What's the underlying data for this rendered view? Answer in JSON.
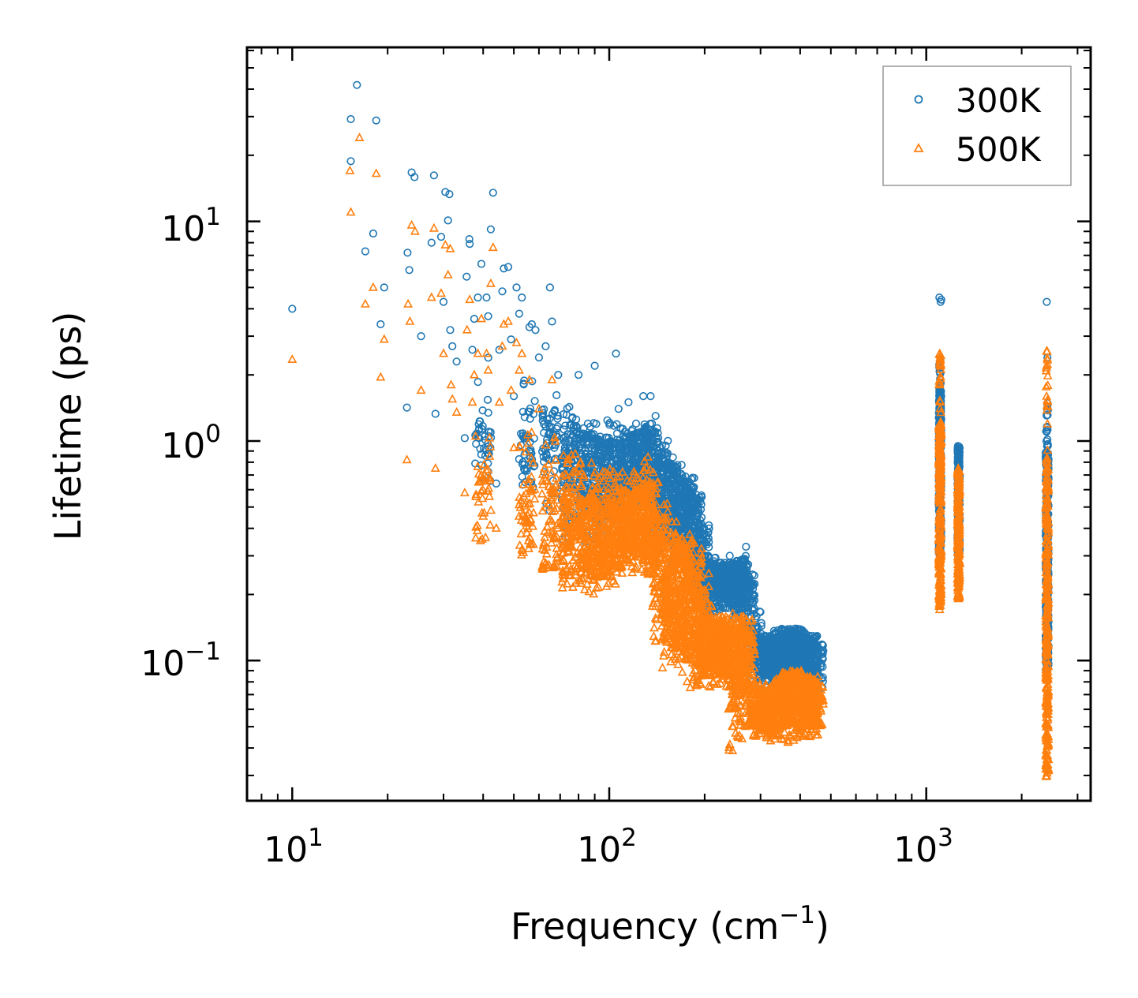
{
  "chart_data": {
    "type": "scatter",
    "xscale": "log",
    "yscale": "log",
    "xlim": [
      7.2,
      3300
    ],
    "ylim": [
      0.023,
      62
    ],
    "xlabel": "Frequency (cm",
    "xlabel_sup": "−1",
    "xlabel_close": ")",
    "ylabel": "Lifetime (ps)",
    "legend_position": "top-right",
    "x_ticks": [
      {
        "base": "10",
        "exp": "1",
        "value": 10
      },
      {
        "base": "10",
        "exp": "2",
        "value": 100
      },
      {
        "base": "10",
        "exp": "3",
        "value": 1000
      }
    ],
    "y_ticks": [
      {
        "base": "10",
        "exp": "−1",
        "value": 0.1
      },
      {
        "base": "10",
        "exp": "0",
        "value": 1
      },
      {
        "base": "10",
        "exp": "1",
        "value": 10
      }
    ],
    "series": [
      {
        "name": "300K",
        "marker": "circle",
        "color": "#1f77b4",
        "points": [
          [
            10,
            4.0
          ],
          [
            15.3,
            18.8
          ],
          [
            15.3,
            29.2
          ],
          [
            16.0,
            41.8
          ],
          [
            17.0,
            7.3
          ],
          [
            18.0,
            8.8
          ],
          [
            18.4,
            28.8
          ],
          [
            19.0,
            3.4
          ],
          [
            19.5,
            5.0
          ],
          [
            23.0,
            1.42
          ],
          [
            23.1,
            7.2
          ],
          [
            23.4,
            6.0
          ],
          [
            23.8,
            16.7
          ],
          [
            24.3,
            15.9
          ],
          [
            25.5,
            3.0
          ],
          [
            27.5,
            8.0
          ],
          [
            28.0,
            16.2
          ],
          [
            28.3,
            1.33
          ],
          [
            29.5,
            8.5
          ],
          [
            30.0,
            4.3
          ],
          [
            30.4,
            13.6
          ],
          [
            31.0,
            10.1
          ],
          [
            31.3,
            13.3
          ],
          [
            31.5,
            3.2
          ],
          [
            32.0,
            2.7
          ],
          [
            33.0,
            2.3
          ],
          [
            35.0,
            1.03
          ],
          [
            35.5,
            5.6
          ],
          [
            36.2,
            8.3
          ],
          [
            36.3,
            7.9
          ],
          [
            37.0,
            2.6
          ],
          [
            37.5,
            3.6
          ],
          [
            38.0,
            0.97
          ],
          [
            38.5,
            4.5
          ],
          [
            39.5,
            6.4
          ],
          [
            41.0,
            4.5
          ],
          [
            41.5,
            3.7
          ],
          [
            42.3,
            9.2
          ],
          [
            43.0,
            13.5
          ],
          [
            44.0,
            0.64
          ],
          [
            45.0,
            2.6
          ],
          [
            46.0,
            4.8
          ],
          [
            46.5,
            6.1
          ],
          [
            48.0,
            6.2
          ],
          [
            49.0,
            2.9
          ],
          [
            50.0,
            1.6
          ],
          [
            51.0,
            5.0
          ],
          [
            52.0,
            3.8
          ],
          [
            53.0,
            4.5
          ],
          [
            56.0,
            3.3
          ],
          [
            57.0,
            3.4
          ],
          [
            58.5,
            3.2
          ],
          [
            60.0,
            2.4
          ],
          [
            63.0,
            2.7
          ],
          [
            65.0,
            5.0
          ],
          [
            66.0,
            3.5
          ],
          [
            69.0,
            2.0
          ],
          [
            80.0,
            2.0
          ],
          [
            90.0,
            2.2
          ],
          [
            105.0,
            2.5
          ],
          [
            107.0,
            1.4
          ],
          [
            115.0,
            1.5
          ],
          [
            128.0,
            1.6
          ],
          [
            135.0,
            1.6
          ],
          [
            140.0,
            1.3
          ],
          [
            240.0,
            0.3
          ],
          [
            270.0,
            0.33
          ],
          [
            1100.0,
            4.5
          ],
          [
            1110.0,
            4.3
          ],
          [
            1115.0,
            4.4
          ],
          [
            2400.0,
            4.3
          ],
          [
            2410.0,
            2.4
          ]
        ],
        "bands": [
          [
            40,
            1.0,
            2.4,
            0.65,
            1.3,
            40
          ],
          [
            55,
            1.1,
            2.2,
            0.6,
            1.1,
            50
          ],
          [
            65,
            0.45,
            1.7,
            0.8,
            1.4,
            60
          ],
          [
            75,
            0.35,
            1.5,
            0.6,
            1.2,
            120
          ],
          [
            85,
            0.33,
            1.35,
            0.5,
            1.1,
            150
          ],
          [
            95,
            0.33,
            1.25,
            0.46,
            1.05,
            150
          ],
          [
            105,
            0.36,
            1.2,
            0.5,
            1.0,
            150
          ],
          [
            115,
            0.38,
            1.15,
            0.55,
            1.05,
            150
          ],
          [
            125,
            0.38,
            1.2,
            0.58,
            1.1,
            150
          ],
          [
            135,
            0.35,
            1.25,
            0.5,
            1.15,
            150
          ],
          [
            145,
            0.3,
            1.05,
            0.4,
            0.9,
            130
          ],
          [
            155,
            0.3,
            0.88,
            0.4,
            0.8,
            120
          ],
          [
            165,
            0.26,
            0.78,
            0.34,
            0.72,
            120
          ],
          [
            175,
            0.25,
            0.7,
            0.32,
            0.68,
            120
          ],
          [
            185,
            0.22,
            0.6,
            0.28,
            0.58,
            120
          ],
          [
            195,
            0.18,
            0.45,
            0.22,
            0.42,
            120
          ],
          [
            205,
            0.16,
            0.3,
            0.2,
            0.28,
            120
          ],
          [
            220,
            0.16,
            0.28,
            0.19,
            0.27,
            130
          ],
          [
            235,
            0.17,
            0.28,
            0.2,
            0.28,
            130
          ],
          [
            250,
            0.15,
            0.28,
            0.18,
            0.28,
            130
          ],
          [
            262,
            0.16,
            0.3,
            0.2,
            0.29,
            100
          ],
          [
            272,
            0.14,
            0.25,
            0.17,
            0.24,
            80
          ],
          [
            285,
            0.085,
            0.17,
            0.1,
            0.15,
            80
          ],
          [
            297,
            0.09,
            0.135,
            0.1,
            0.13,
            60
          ],
          [
            312,
            0.075,
            0.12,
            0.085,
            0.118,
            100
          ],
          [
            330,
            0.075,
            0.13,
            0.085,
            0.13,
            120
          ],
          [
            350,
            0.075,
            0.14,
            0.085,
            0.135,
            120
          ],
          [
            370,
            0.08,
            0.14,
            0.09,
            0.14,
            120
          ],
          [
            390,
            0.08,
            0.14,
            0.09,
            0.14,
            120
          ],
          [
            410,
            0.08,
            0.135,
            0.09,
            0.135,
            120
          ],
          [
            430,
            0.075,
            0.13,
            0.085,
            0.13,
            120
          ],
          [
            447,
            0.075,
            0.12,
            0.08,
            0.12,
            80
          ]
        ],
        "clusters": [
          [
            1095,
            1115,
            0.3,
            1.8,
            260
          ],
          [
            1098,
            1112,
            1.0,
            2.6,
            30
          ],
          [
            1255,
            1275,
            0.3,
            0.95,
            220
          ],
          [
            2380,
            2430,
            0.09,
            0.9,
            300
          ],
          [
            2390,
            2420,
            0.9,
            1.5,
            20
          ]
        ]
      },
      {
        "name": "500K",
        "marker": "triangle",
        "color": "#ff7f0e",
        "points": [
          [
            10,
            2.35
          ],
          [
            15.2,
            17.0
          ],
          [
            15.3,
            11.0
          ],
          [
            16.3,
            24.0
          ],
          [
            17.0,
            4.2
          ],
          [
            18.0,
            5.0
          ],
          [
            18.4,
            16.5
          ],
          [
            19.0,
            1.95
          ],
          [
            19.5,
            2.9
          ],
          [
            23.0,
            0.82
          ],
          [
            23.2,
            4.2
          ],
          [
            23.5,
            3.5
          ],
          [
            23.8,
            9.6
          ],
          [
            24.4,
            9.0
          ],
          [
            25.5,
            1.7
          ],
          [
            27.5,
            4.5
          ],
          [
            28.0,
            9.3
          ],
          [
            28.3,
            0.75
          ],
          [
            29.5,
            4.7
          ],
          [
            30.0,
            2.5
          ],
          [
            30.4,
            7.8
          ],
          [
            31.0,
            5.7
          ],
          [
            31.5,
            7.5
          ],
          [
            31.7,
            1.8
          ],
          [
            32.0,
            1.55
          ],
          [
            33.0,
            1.35
          ],
          [
            35.0,
            0.58
          ],
          [
            35.6,
            3.2
          ],
          [
            36.3,
            4.4
          ],
          [
            37.0,
            1.5
          ],
          [
            37.5,
            2.0
          ],
          [
            38.0,
            0.57
          ],
          [
            38.5,
            2.5
          ],
          [
            39.5,
            3.6
          ],
          [
            41.0,
            2.5
          ],
          [
            41.5,
            2.1
          ],
          [
            42.3,
            5.2
          ],
          [
            43.0,
            7.6
          ],
          [
            44.0,
            0.4
          ],
          [
            45.0,
            1.5
          ],
          [
            46.0,
            2.7
          ],
          [
            46.5,
            3.4
          ],
          [
            48.0,
            3.5
          ],
          [
            49.0,
            1.7
          ],
          [
            50.0,
            0.93
          ],
          [
            51.0,
            2.8
          ],
          [
            52.0,
            2.1
          ],
          [
            53.0,
            2.5
          ],
          [
            56.0,
            1.9
          ],
          [
            60.0,
            1.4
          ],
          [
            66.0,
            1.9
          ]
        ],
        "bands": [
          [
            40,
            0.4,
            1.3,
            0.35,
            0.75,
            40
          ],
          [
            55,
            0.3,
            1.2,
            0.3,
            0.65,
            60
          ],
          [
            65,
            0.24,
            1.05,
            0.26,
            0.7,
            80
          ],
          [
            75,
            0.21,
            0.9,
            0.24,
            0.62,
            140
          ],
          [
            85,
            0.2,
            0.8,
            0.23,
            0.56,
            160
          ],
          [
            95,
            0.21,
            0.8,
            0.24,
            0.55,
            160
          ],
          [
            105,
            0.22,
            0.75,
            0.26,
            0.55,
            160
          ],
          [
            115,
            0.23,
            0.72,
            0.28,
            0.6,
            160
          ],
          [
            125,
            0.25,
            0.75,
            0.3,
            0.62,
            150
          ],
          [
            135,
            0.24,
            0.85,
            0.28,
            0.65,
            150
          ],
          [
            145,
            0.12,
            0.55,
            0.16,
            0.48,
            140
          ],
          [
            155,
            0.09,
            0.45,
            0.12,
            0.4,
            140
          ],
          [
            165,
            0.085,
            0.4,
            0.11,
            0.36,
            130
          ],
          [
            175,
            0.08,
            0.38,
            0.1,
            0.34,
            130
          ],
          [
            185,
            0.075,
            0.33,
            0.095,
            0.3,
            130
          ],
          [
            195,
            0.075,
            0.25,
            0.09,
            0.22,
            120
          ],
          [
            205,
            0.075,
            0.18,
            0.085,
            0.16,
            120
          ],
          [
            220,
            0.075,
            0.16,
            0.085,
            0.15,
            130
          ],
          [
            235,
            0.075,
            0.17,
            0.085,
            0.16,
            130
          ],
          [
            250,
            0.038,
            0.16,
            0.06,
            0.15,
            130
          ],
          [
            262,
            0.045,
            0.17,
            0.07,
            0.16,
            100
          ],
          [
            272,
            0.05,
            0.16,
            0.07,
            0.14,
            80
          ],
          [
            285,
            0.045,
            0.085,
            0.05,
            0.075,
            80
          ],
          [
            297,
            0.045,
            0.07,
            0.05,
            0.065,
            60
          ],
          [
            312,
            0.043,
            0.075,
            0.048,
            0.07,
            100
          ],
          [
            330,
            0.042,
            0.08,
            0.048,
            0.078,
            120
          ],
          [
            350,
            0.042,
            0.09,
            0.05,
            0.085,
            120
          ],
          [
            370,
            0.043,
            0.09,
            0.05,
            0.088,
            120
          ],
          [
            390,
            0.045,
            0.09,
            0.05,
            0.088,
            120
          ],
          [
            410,
            0.045,
            0.09,
            0.05,
            0.085,
            120
          ],
          [
            430,
            0.045,
            0.085,
            0.05,
            0.082,
            120
          ],
          [
            447,
            0.048,
            0.08,
            0.05,
            0.078,
            80
          ]
        ],
        "clusters": [
          [
            1095,
            1115,
            0.17,
            1.2,
            260
          ],
          [
            1098,
            1112,
            1.0,
            2.5,
            30
          ],
          [
            1255,
            1275,
            0.19,
            0.75,
            220
          ],
          [
            2380,
            2430,
            0.028,
            0.75,
            300
          ],
          [
            2390,
            2420,
            0.75,
            2.6,
            25
          ]
        ]
      }
    ]
  }
}
